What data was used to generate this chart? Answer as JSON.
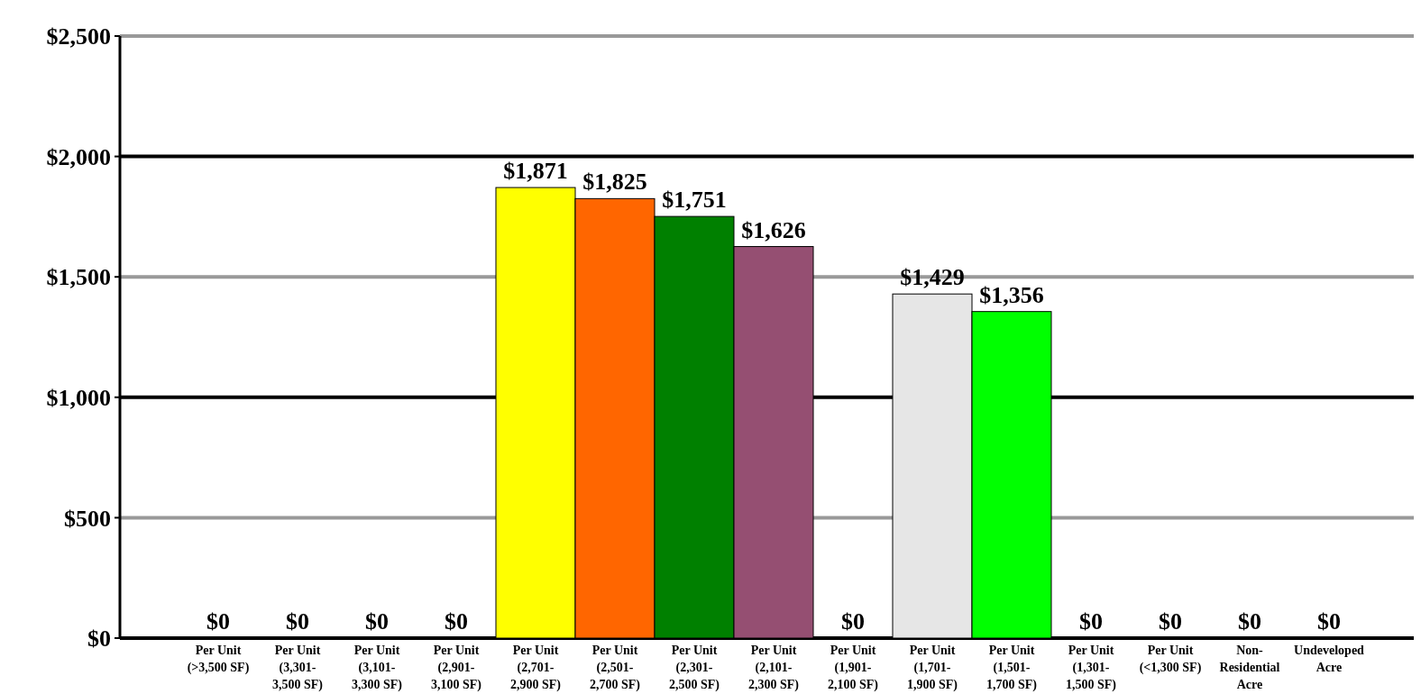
{
  "chart_data": {
    "type": "bar",
    "categories": [
      "Per Unit (>3,500 SF)",
      "Per Unit (3,301-3,500 SF)",
      "Per Unit (3,101-3,300 SF)",
      "Per Unit (2,901-3,100 SF)",
      "Per Unit (2,701-2,900 SF)",
      "Per Unit (2,501-2,700 SF)",
      "Per Unit (2,301-2,500 SF)",
      "Per Unit (2,101-2,300 SF)",
      "Per Unit (1,901-2,100 SF)",
      "Per Unit (1,701-1,900 SF)",
      "Per Unit (1,501-1,700 SF)",
      "Per Unit (1,301-1,500 SF)",
      "Per Unit (<1,300 SF)",
      "Non-Residential Acre",
      "Undeveloped Acre"
    ],
    "values": [
      0,
      0,
      0,
      0,
      1871,
      1825,
      1751,
      1626,
      0,
      1429,
      1356,
      0,
      0,
      0,
      0
    ],
    "colors": [
      "#0099cc",
      "#004c99",
      "#9999cc",
      "#cc0000",
      "#ffff00",
      "#ff6600",
      "#008000",
      "#954f72",
      "#004c99",
      "#e6e6e6",
      "#00ff00",
      "#00cccc",
      "#0000cc",
      "#cc00cc",
      "#006666"
    ],
    "value_labels": [
      "$0",
      "$0",
      "$0",
      "$0",
      "$1,871",
      "$1,825",
      "$1,751",
      "$1,626",
      "$0",
      "$1,429",
      "$1,356",
      "$0",
      "$0",
      "$0",
      "$0"
    ],
    "ylim": [
      0,
      2500
    ],
    "yticks": [
      {
        "value": 0,
        "label": "$0"
      },
      {
        "value": 500,
        "label": "$500"
      },
      {
        "value": 1000,
        "label": "$1,000"
      },
      {
        "value": 1500,
        "label": "$1,500"
      },
      {
        "value": 2000,
        "label": "$2,000"
      },
      {
        "value": 2500,
        "label": "$2,500"
      }
    ],
    "grid": "y"
  }
}
